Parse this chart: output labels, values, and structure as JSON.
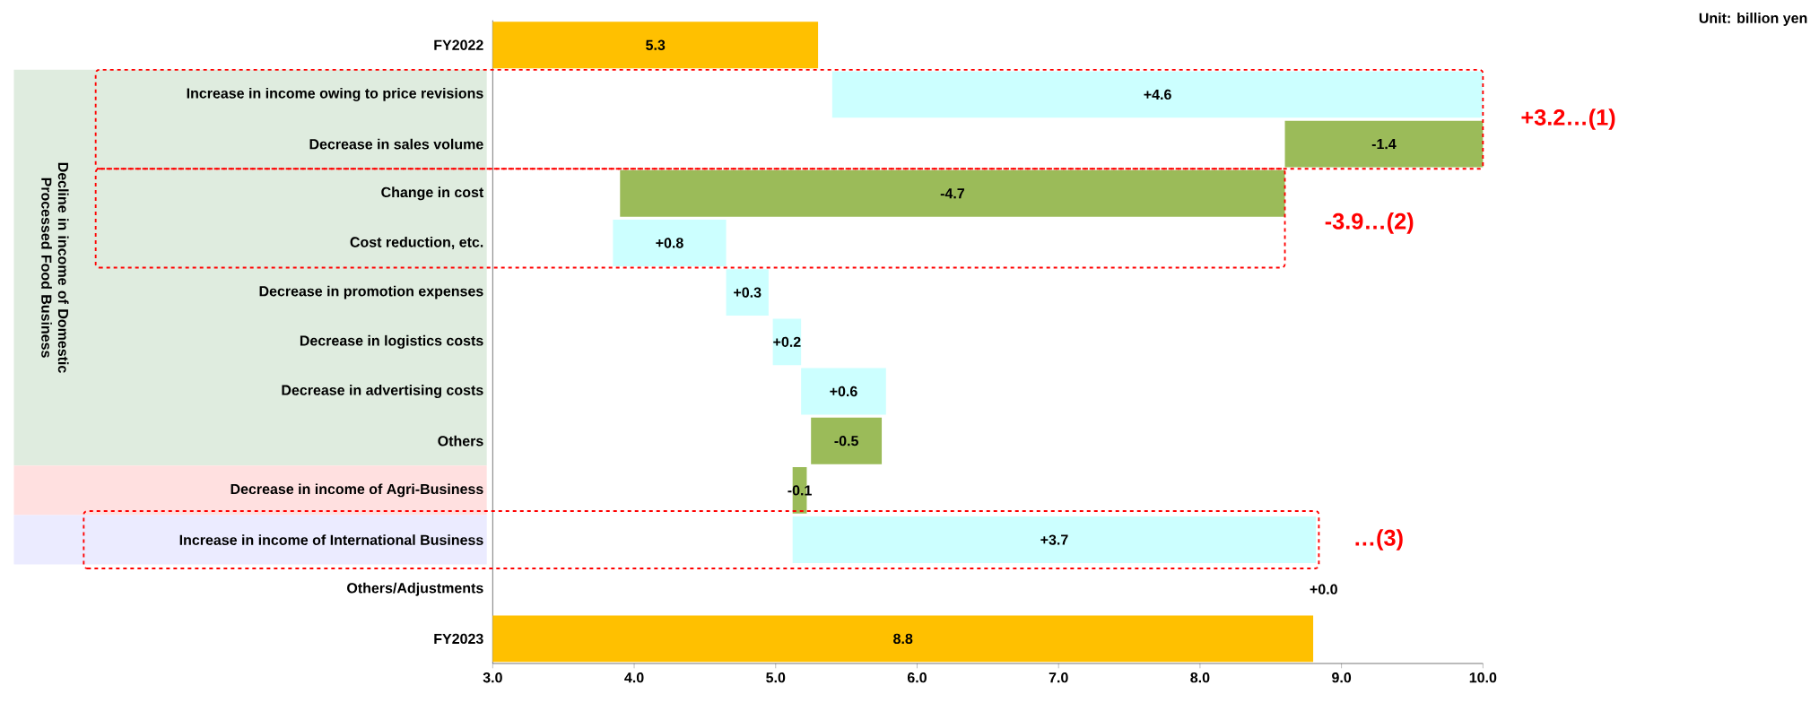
{
  "chart_data": {
    "type": "bar",
    "orientation": "horizontal",
    "categories": [
      "FY2022",
      "Increase in income owing to price revisions",
      "Decrease in sales volume",
      "Change in cost",
      "Cost reduction, etc.",
      "Decrease in promotion expenses",
      "Decrease in logistics costs",
      "Decrease in advertising costs",
      "Others",
      "Decrease in income of Agri-Business",
      "Increase in income of International Business",
      "Others/Adjustments",
      "FY2023"
    ],
    "base": [
      3.0,
      5.4,
      10.0,
      8.6,
      3.85,
      4.65,
      4.98,
      5.18,
      5.75,
      5.22,
      5.12,
      null,
      3.0
    ],
    "values": [
      2.3,
      4.6,
      -1.4,
      -4.7,
      0.8,
      0.3,
      0.2,
      0.6,
      -0.5,
      -0.1,
      3.7,
      null,
      5.8
    ],
    "colors": [
      "#ffc000",
      "#ccffff",
      "#9bbb59",
      "#9bbb59",
      "#ccffff",
      "#ccffff",
      "#ccffff",
      "#ccffff",
      "#9bbb59",
      "#9bbb59",
      "#ccffff",
      "#ccffff",
      "#ffc000"
    ],
    "value_labels": [
      "5.3",
      "+4.6",
      "-1.4",
      "-4.7",
      "+0.8",
      "+0.3",
      "+0.2",
      "+0.6",
      "-0.5",
      "-0.1",
      "+3.7",
      null,
      "8.8"
    ],
    "xlim": [
      3.0,
      10.0
    ],
    "xticks": [
      {
        "value": 3,
        "label": "3.0"
      },
      {
        "value": 4,
        "label": "4.0"
      },
      {
        "value": 5,
        "label": "5.0"
      },
      {
        "value": 6,
        "label": "6.0"
      },
      {
        "value": 7,
        "label": "7.0"
      },
      {
        "value": 8,
        "label": "8.0"
      },
      {
        "value": 9,
        "label": "9.0"
      },
      {
        "value": 10,
        "label": "10.0"
      }
    ],
    "grid": false,
    "annotations": [
      "Unit: billion yen",
      "+3.2…(1)",
      "-3.9…(2)",
      "…(3)",
      "Decline in income of Domestic Processed Food Business",
      "+0.0"
    ]
  }
}
